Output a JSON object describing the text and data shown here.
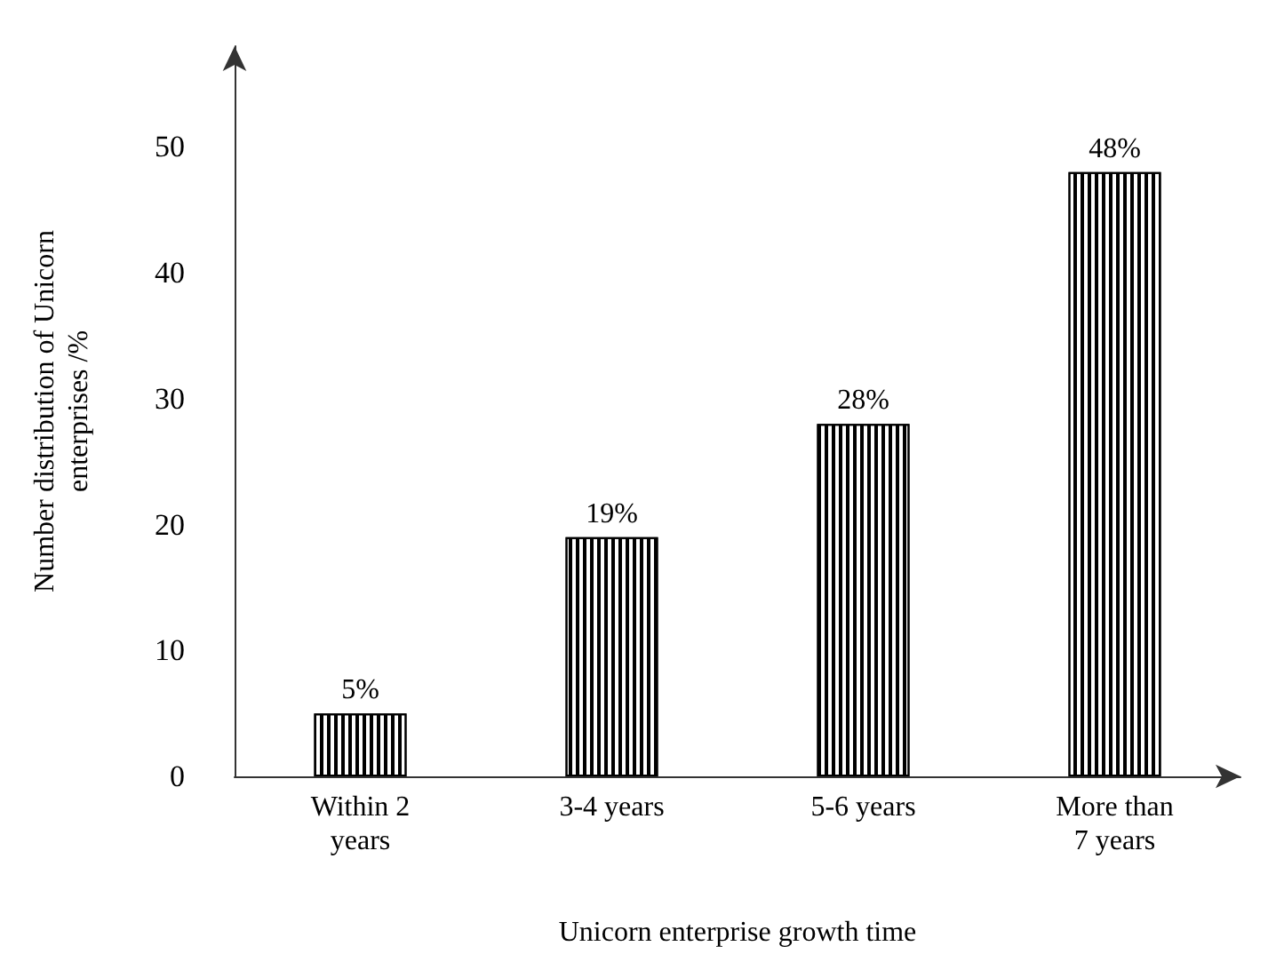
{
  "chart_data": {
    "type": "bar",
    "categories": [
      "Within 2 years",
      "3-4 years",
      "5-6 years",
      "More than 7 years"
    ],
    "values": [
      5,
      19,
      28,
      48
    ],
    "value_labels": [
      "5%",
      "19%",
      "28%",
      "48%"
    ],
    "color": "#000000",
    "xlabel": "Unicorn enterprise growth time",
    "ylabel": "Number distribution of Unicorn enterprises /%",
    "ylim": [
      0,
      58
    ],
    "yticks": [
      0,
      10,
      20,
      30,
      40,
      50
    ],
    "grid": false
  }
}
